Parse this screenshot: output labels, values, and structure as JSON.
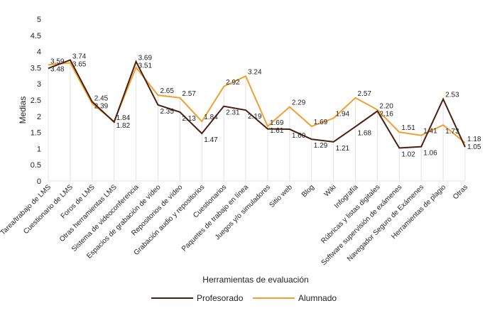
{
  "chart_data": {
    "type": "line",
    "title": "",
    "xlabel": "Herramientas de evaluación",
    "ylabel": "Medias",
    "ylim": [
      0,
      5
    ],
    "yticks": [
      0,
      0.5,
      1,
      1.5,
      2,
      2.5,
      3,
      3.5,
      4,
      4.5,
      5
    ],
    "grid": "vertical",
    "legend_position": "bottom",
    "categories": [
      "Tarea/trabajo de LMS",
      "Cuestionario de LMS",
      "Foros de LMS",
      "Otras herramientas LMS",
      "Sistema de videoconferencia",
      "Espacios de grabación de vídeo",
      "Repositorios de vídeo",
      "Grabación audio y repositorios",
      "Cuestionarios",
      "Paquetes de trabajo en línea",
      "Juegos y/o simuladores",
      "Sitio web",
      "Blog",
      "Wiki",
      "Infografía",
      "Rúbricas y listas digitales",
      "Software supervisión de exámenes",
      "Navegador Seguro de Exámenes",
      "Herramientas de plagio",
      "Otras"
    ],
    "series": [
      {
        "name": "Profesorado",
        "color": "#4a1f0f",
        "values": [
          3.48,
          3.74,
          2.45,
          1.82,
          3.69,
          2.35,
          2.13,
          1.47,
          2.31,
          2.19,
          1.61,
          1.6,
          1.29,
          1.21,
          1.68,
          2.16,
          1.02,
          1.06,
          2.53,
          1.05
        ]
      },
      {
        "name": "Alumnado",
        "color": "#f0a030",
        "values": [
          3.59,
          3.65,
          2.39,
          1.84,
          3.51,
          2.65,
          2.57,
          1.84,
          2.92,
          3.24,
          1.69,
          2.29,
          1.69,
          1.94,
          2.57,
          2.2,
          1.51,
          1.41,
          1.73,
          1.18
        ]
      }
    ]
  }
}
